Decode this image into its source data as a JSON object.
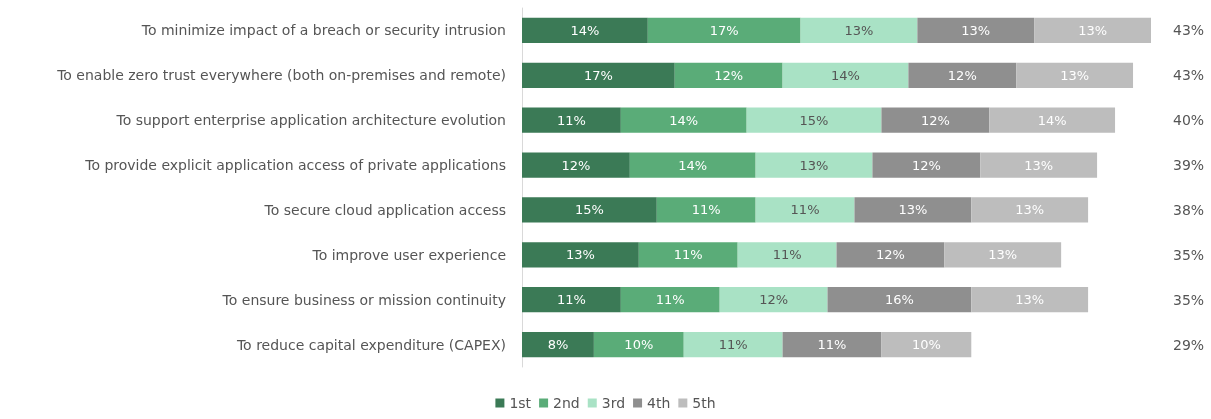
{
  "chart_data": {
    "type": "bar",
    "orientation": "horizontal",
    "stacked": true,
    "legend": "bottom",
    "categories": [
      "To minimize impact of a breach or security intrusion",
      "To enable zero trust everywhere (both on-premises and remote)",
      "To support enterprise application architecture evolution",
      "To provide explicit application access of private applications",
      "To secure cloud application access",
      "To improve user experience",
      "To ensure business or mission continuity",
      "To reduce capital expenditure (CAPEX)"
    ],
    "series": [
      {
        "name": "1st",
        "color": "#3b7a56",
        "values": [
          14,
          17,
          11,
          12,
          15,
          13,
          11,
          8
        ],
        "value_labels": [
          "14%",
          "17%",
          "11%",
          "12%",
          "15%",
          "13%",
          "11%",
          "8%"
        ]
      },
      {
        "name": "2nd",
        "color": "#5aac78",
        "values": [
          17,
          12,
          14,
          14,
          11,
          11,
          11,
          10
        ],
        "value_labels": [
          "17%",
          "12%",
          "14%",
          "14%",
          "11%",
          "11%",
          "11%",
          "10%"
        ]
      },
      {
        "name": "3rd",
        "color": "#a9e2c5",
        "values": [
          13,
          14,
          15,
          13,
          11,
          11,
          12,
          11
        ],
        "value_labels": [
          "13%",
          "14%",
          "15%",
          "13%",
          "11%",
          "11%",
          "12%",
          "11%"
        ]
      },
      {
        "name": "4th",
        "color": "#8f8f8f",
        "values": [
          13,
          12,
          12,
          12,
          13,
          12,
          16,
          11
        ],
        "value_labels": [
          "13%",
          "12%",
          "12%",
          "12%",
          "13%",
          "12%",
          "16%",
          "11%"
        ]
      },
      {
        "name": "5th",
        "color": "#bdbdbd",
        "values": [
          13,
          13,
          14,
          13,
          13,
          13,
          13,
          10
        ],
        "value_labels": [
          "13%",
          "13%",
          "14%",
          "13%",
          "13%",
          "13%",
          "13%",
          "10%"
        ]
      }
    ],
    "annotations": [
      "43%",
      "43%",
      "40%",
      "39%",
      "38%",
      "35%",
      "35%",
      "29%"
    ]
  }
}
